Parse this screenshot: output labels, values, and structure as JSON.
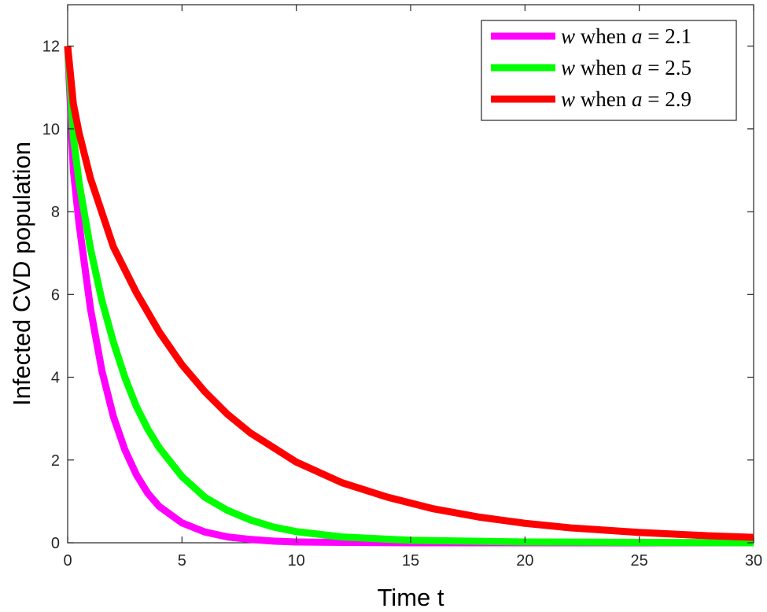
{
  "chart_data": {
    "type": "line",
    "title": "",
    "xlabel": "Time t",
    "ylabel": "Infected CVD population",
    "xlim": [
      0,
      30
    ],
    "ylim": [
      0,
      13
    ],
    "xticks": [
      0,
      5,
      10,
      15,
      20,
      25,
      30
    ],
    "yticks": [
      0,
      2,
      4,
      6,
      8,
      10,
      12
    ],
    "grid": false,
    "legend_position": "top-right",
    "series": [
      {
        "name": "w when a = 2.1",
        "legend_var": "w",
        "legend_word": "when",
        "legend_param": "a",
        "legend_value": "2.1",
        "color": "#ff00ff",
        "x": [
          0,
          0.25,
          0.5,
          1,
          1.5,
          2,
          2.5,
          3,
          3.5,
          4,
          5,
          6,
          7,
          8,
          9,
          10,
          12,
          15,
          20,
          25,
          30
        ],
        "y": [
          12,
          9.0,
          7.7,
          5.65,
          4.15,
          3.05,
          2.25,
          1.65,
          1.2,
          0.88,
          0.48,
          0.26,
          0.14,
          0.08,
          0.04,
          0.02,
          0.01,
          0,
          0,
          0,
          0
        ]
      },
      {
        "name": "w when a = 2.5",
        "legend_var": "w",
        "legend_word": "when",
        "legend_param": "a",
        "legend_value": "2.5",
        "color": "#00ff00",
        "x": [
          0,
          0.25,
          0.5,
          1,
          1.5,
          2,
          2.5,
          3,
          3.5,
          4,
          5,
          6,
          7,
          8,
          9,
          10,
          12,
          15,
          20,
          25,
          30
        ],
        "y": [
          12,
          9.8,
          8.7,
          7.1,
          5.85,
          4.85,
          4.0,
          3.3,
          2.75,
          2.3,
          1.6,
          1.1,
          0.78,
          0.55,
          0.38,
          0.27,
          0.14,
          0.06,
          0.02,
          0.01,
          0
        ]
      },
      {
        "name": "w when a = 2.9",
        "legend_var": "w",
        "legend_word": "when",
        "legend_param": "a",
        "legend_value": "2.9",
        "color": "#ff0000",
        "x": [
          0,
          0.25,
          0.5,
          1,
          2,
          3,
          4,
          5,
          6,
          7,
          8,
          9,
          10,
          12,
          14,
          16,
          18,
          20,
          22,
          25,
          28,
          30
        ],
        "y": [
          12,
          10.6,
          9.9,
          8.8,
          7.15,
          6.05,
          5.1,
          4.3,
          3.65,
          3.1,
          2.65,
          2.3,
          1.95,
          1.45,
          1.1,
          0.82,
          0.62,
          0.47,
          0.36,
          0.25,
          0.17,
          0.13
        ]
      }
    ]
  }
}
